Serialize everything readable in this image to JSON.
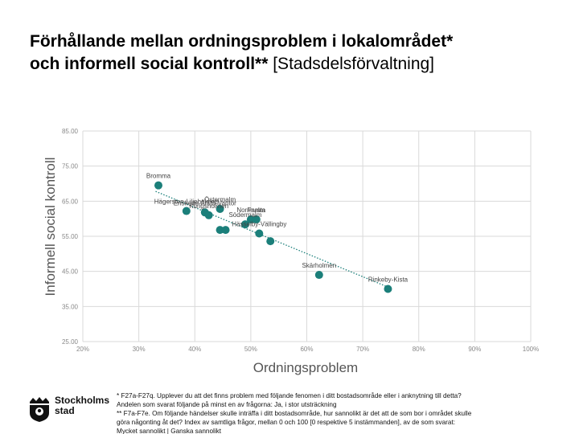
{
  "title": {
    "line1": "Förhållande mellan ordningsproblem i lokalområdet*",
    "line2_bold": "och informell social kontroll**",
    "line2_rest": " [Stadsdelsförvaltning]"
  },
  "chart_data": {
    "type": "scatter",
    "xlabel": "Ordningsproblem",
    "ylabel": "Informell social kontroll",
    "xlim": [
      0.2,
      1.0
    ],
    "ylim": [
      25,
      85
    ],
    "x_ticks": [
      "20%",
      "30%",
      "40%",
      "50%",
      "60%",
      "70%",
      "80%",
      "90%",
      "100%"
    ],
    "y_ticks": [
      "85.00",
      "75.00",
      "65.00",
      "55.00",
      "45.00",
      "35.00",
      "25.00"
    ],
    "grid": true,
    "trendline": {
      "style": "dotted",
      "from": [
        0.33,
        67.8
      ],
      "to": [
        0.75,
        40.2
      ]
    },
    "points": [
      {
        "label": "Bromma",
        "x": 0.335,
        "y": 69.5
      },
      {
        "label": "Hägersten-Liljeholmen",
        "x": 0.385,
        "y": 62.2
      },
      {
        "label": "Enskede-Årsta-Vantör",
        "x": 0.418,
        "y": 61.8
      },
      {
        "label": "Kungsholmen",
        "x": 0.425,
        "y": 61.0
      },
      {
        "label": "Östermalm",
        "x": 0.445,
        "y": 62.8
      },
      {
        "label": "",
        "x": 0.445,
        "y": 56.8
      },
      {
        "label": "",
        "x": 0.455,
        "y": 56.8
      },
      {
        "label": "Södermalm",
        "x": 0.49,
        "y": 58.4
      },
      {
        "label": "Norrmalm",
        "x": 0.5,
        "y": 59.8
      },
      {
        "label": "Farsta",
        "x": 0.51,
        "y": 59.8
      },
      {
        "label": "Hässelby-Vällingby",
        "x": 0.515,
        "y": 55.8
      },
      {
        "label": "",
        "x": 0.535,
        "y": 53.6
      },
      {
        "label": "Skärholmen",
        "x": 0.622,
        "y": 44.0
      },
      {
        "label": "Rinkeby-Kista",
        "x": 0.745,
        "y": 40.0
      }
    ],
    "marker_color": "#1b7f7a"
  },
  "footnotes": {
    "line1": "* F27a-F27q. Upplever du att det finns problem med följande fenomen i ditt bostadsområde eller i anknytning till detta?",
    "line2": "Andelen som svarat följande på minst en av frågorna: Ja, i stor utsträckning",
    "line3": "** F7a-F7e. Om följande händelser skulle inträffa i ditt bostadsområde, hur sannolikt är det att de som bor i området skulle",
    "line4": "göra någonting åt det? Index av samtliga frågor, mellan 0 och 100 [0 respektive 5 instämmanden], av de som svarat:",
    "line5": "Mycket sannolikt | Ganska sannolikt"
  },
  "logo": {
    "line1": "Stockholms",
    "line2": "stad"
  }
}
